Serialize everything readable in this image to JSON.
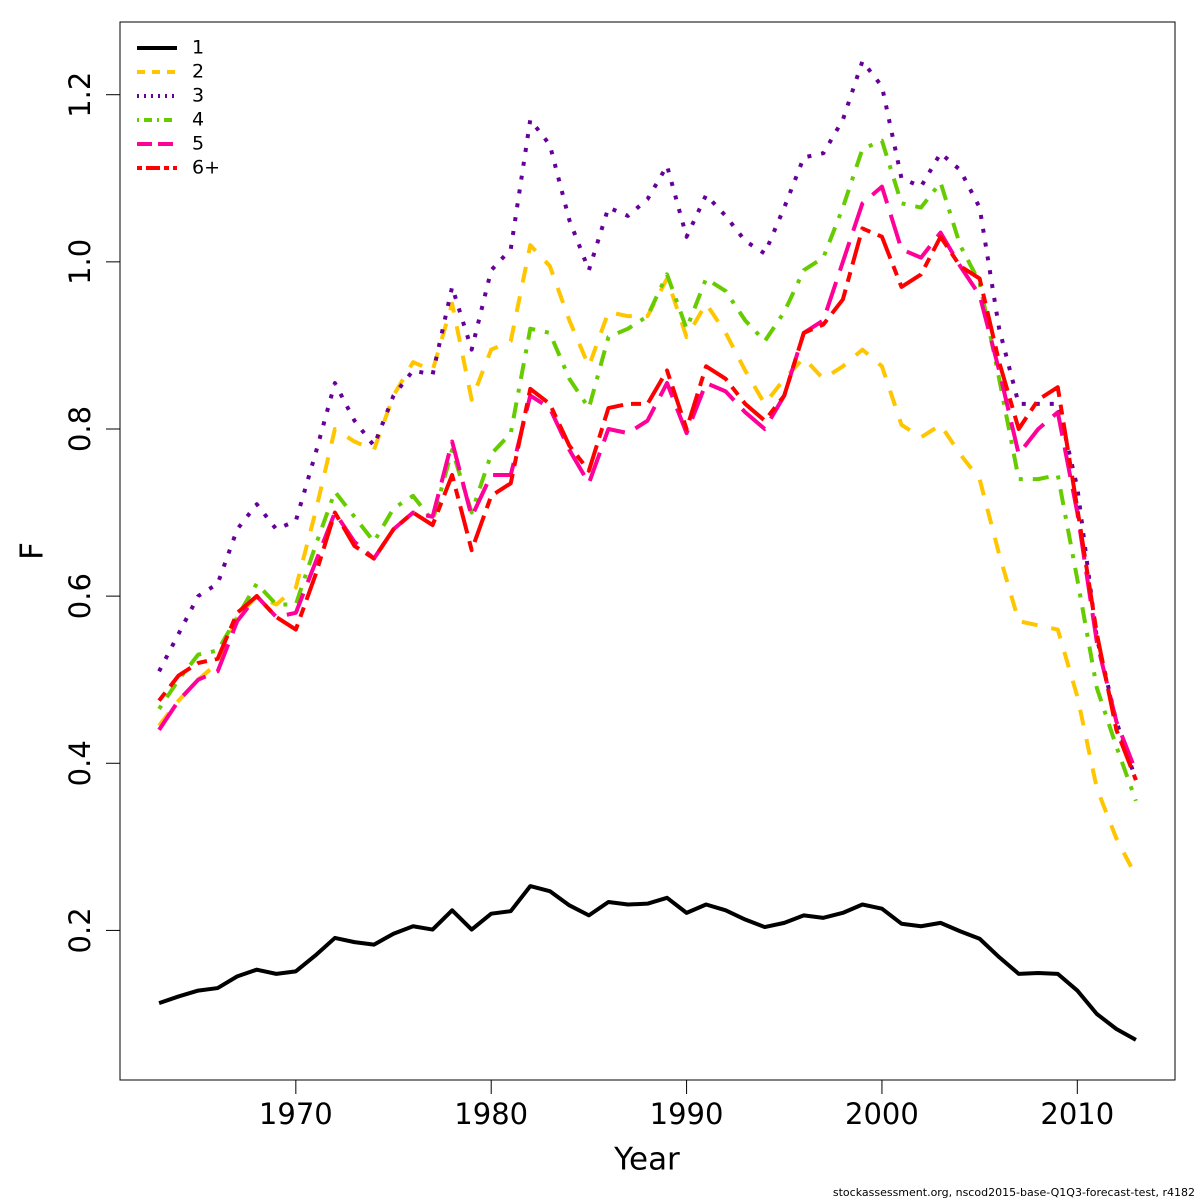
{
  "chart_data": {
    "type": "line",
    "xlabel": "Year",
    "ylabel": "F",
    "footnote": "stockassessment.org, nscod2015-base-Q1Q3-forecast-test, r4182",
    "x": [
      1963,
      1964,
      1965,
      1966,
      1967,
      1968,
      1969,
      1970,
      1971,
      1972,
      1973,
      1974,
      1975,
      1976,
      1977,
      1978,
      1979,
      1980,
      1981,
      1982,
      1983,
      1984,
      1985,
      1986,
      1987,
      1988,
      1989,
      1990,
      1991,
      1992,
      1993,
      1994,
      1995,
      1996,
      1997,
      1998,
      1999,
      2000,
      2001,
      2002,
      2003,
      2004,
      2005,
      2006,
      2007,
      2008,
      2009,
      2010,
      2011,
      2012,
      2013
    ],
    "series": [
      {
        "name": "1",
        "color": "#000000",
        "dash": "solid",
        "values": [
          0.113,
          0.121,
          0.128,
          0.131,
          0.145,
          0.153,
          0.148,
          0.151,
          0.17,
          0.191,
          0.186,
          0.183,
          0.196,
          0.205,
          0.201,
          0.224,
          0.201,
          0.22,
          0.223,
          0.253,
          0.247,
          0.23,
          0.218,
          0.234,
          0.231,
          0.232,
          0.239,
          0.221,
          0.231,
          0.224,
          0.213,
          0.204,
          0.209,
          0.218,
          0.215,
          0.221,
          0.231,
          0.226,
          0.208,
          0.205,
          0.209,
          0.199,
          0.19,
          0.168,
          0.148,
          0.149,
          0.148,
          0.128,
          0.1,
          0.082,
          0.069
        ]
      },
      {
        "name": "2",
        "color": "#ffc600",
        "dash": "dashed",
        "values": [
          0.445,
          0.475,
          0.5,
          0.52,
          0.575,
          0.6,
          0.59,
          0.61,
          0.7,
          0.8,
          0.785,
          0.775,
          0.84,
          0.88,
          0.87,
          0.95,
          0.835,
          0.895,
          0.905,
          1.02,
          0.995,
          0.93,
          0.875,
          0.94,
          0.935,
          0.935,
          0.98,
          0.91,
          0.95,
          0.915,
          0.87,
          0.83,
          0.86,
          0.885,
          0.86,
          0.875,
          0.895,
          0.875,
          0.805,
          0.79,
          0.805,
          0.77,
          0.74,
          0.65,
          0.57,
          0.565,
          0.56,
          0.48,
          0.37,
          0.31,
          0.265
        ]
      },
      {
        "name": "3",
        "color": "#660099",
        "dash": "dotted",
        "values": [
          0.51,
          0.555,
          0.6,
          0.615,
          0.68,
          0.71,
          0.68,
          0.69,
          0.77,
          0.855,
          0.81,
          0.78,
          0.84,
          0.87,
          0.865,
          0.97,
          0.895,
          0.99,
          1.015,
          1.17,
          1.14,
          1.05,
          0.99,
          1.065,
          1.055,
          1.075,
          1.115,
          1.03,
          1.08,
          1.055,
          1.025,
          1.01,
          1.065,
          1.125,
          1.13,
          1.17,
          1.24,
          1.21,
          1.1,
          1.09,
          1.13,
          1.11,
          1.065,
          0.92,
          0.83,
          0.83,
          0.83,
          0.73,
          0.55,
          0.45,
          0.38
        ]
      },
      {
        "name": "4",
        "color": "#66cc00",
        "dash": "dotdash",
        "values": [
          0.465,
          0.5,
          0.53,
          0.535,
          0.575,
          0.615,
          0.59,
          0.59,
          0.66,
          0.725,
          0.695,
          0.665,
          0.705,
          0.72,
          0.69,
          0.775,
          0.7,
          0.77,
          0.795,
          0.92,
          0.915,
          0.86,
          0.825,
          0.91,
          0.92,
          0.935,
          0.985,
          0.92,
          0.98,
          0.965,
          0.93,
          0.905,
          0.94,
          0.99,
          1.005,
          1.065,
          1.135,
          1.145,
          1.07,
          1.065,
          1.095,
          1.02,
          0.975,
          0.86,
          0.74,
          0.74,
          0.745,
          0.62,
          0.49,
          0.42,
          0.355
        ]
      },
      {
        "name": "5",
        "color": "#ff0099",
        "dash": "longdash",
        "values": [
          0.44,
          0.475,
          0.5,
          0.51,
          0.57,
          0.6,
          0.575,
          0.58,
          0.64,
          0.7,
          0.665,
          0.645,
          0.68,
          0.7,
          0.695,
          0.785,
          0.695,
          0.745,
          0.745,
          0.84,
          0.825,
          0.775,
          0.735,
          0.8,
          0.795,
          0.81,
          0.855,
          0.795,
          0.855,
          0.845,
          0.82,
          0.8,
          0.84,
          0.915,
          0.93,
          1.0,
          1.07,
          1.09,
          1.015,
          1.005,
          1.035,
          0.995,
          0.96,
          0.87,
          0.77,
          0.8,
          0.82,
          0.7,
          0.545,
          0.45,
          0.39
        ]
      },
      {
        "name": "6+",
        "color": "#ff0000",
        "dash": "twodash",
        "values": [
          0.475,
          0.505,
          0.52,
          0.525,
          0.58,
          0.6,
          0.575,
          0.56,
          0.625,
          0.7,
          0.66,
          0.645,
          0.68,
          0.7,
          0.685,
          0.745,
          0.655,
          0.72,
          0.735,
          0.848,
          0.83,
          0.78,
          0.75,
          0.825,
          0.83,
          0.83,
          0.87,
          0.8,
          0.875,
          0.86,
          0.83,
          0.81,
          0.84,
          0.915,
          0.925,
          0.955,
          1.04,
          1.03,
          0.97,
          0.985,
          1.03,
          0.995,
          0.98,
          0.88,
          0.8,
          0.835,
          0.85,
          0.705,
          0.555,
          0.44,
          0.38
        ]
      }
    ],
    "xlim": [
      1961,
      2015
    ],
    "xticks": [
      1970,
      1980,
      1990,
      2000,
      2010
    ],
    "ylim": [
      0.021,
      1.287
    ],
    "yticks": [
      0.2,
      0.4,
      0.6,
      0.8,
      {
        "value": 1,
        "label": "1.0"
      },
      1.2
    ],
    "grid": false,
    "legend": "topleft"
  }
}
